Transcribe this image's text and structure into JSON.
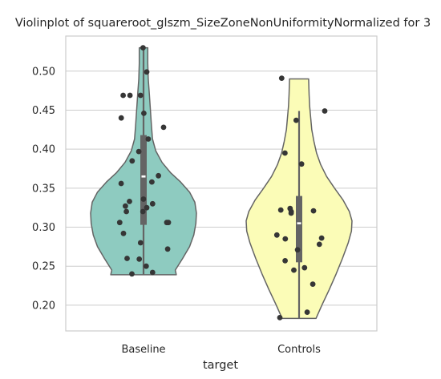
{
  "chart_data": {
    "type": "violin",
    "title": "Violinplot of squareroot_glszm_SizeZoneNonUniformityNormalized for 3",
    "xlabel": "target",
    "ylabel": "",
    "categories": [
      "Baseline",
      "Controls"
    ],
    "ylim": [
      0.167,
      0.545
    ],
    "yticks": [
      0.2,
      0.25,
      0.3,
      0.35,
      0.4,
      0.45,
      0.5
    ],
    "ytick_labels": [
      "0.20",
      "0.25",
      "0.30",
      "0.35",
      "0.40",
      "0.45",
      "0.50"
    ],
    "grid": "horizontal",
    "colors": {
      "Baseline": "#8ecbc0",
      "Controls": "#fbfcb7",
      "outline": "#646464",
      "points": "#363636",
      "box": "#646464"
    },
    "series": [
      {
        "name": "Baseline",
        "range": [
          0.239,
          0.53
        ],
        "box": {
          "q1": 0.303,
          "median": 0.365,
          "q3": 0.418,
          "whisker_low": 0.239,
          "whisker_high": 0.53
        },
        "density": [
          [
            0.239,
            0.62
          ],
          [
            0.245,
            0.6
          ],
          [
            0.26,
            0.74
          ],
          [
            0.275,
            0.87
          ],
          [
            0.29,
            0.95
          ],
          [
            0.305,
            0.99
          ],
          [
            0.318,
            1.0
          ],
          [
            0.332,
            0.97
          ],
          [
            0.345,
            0.87
          ],
          [
            0.358,
            0.7
          ],
          [
            0.37,
            0.51
          ],
          [
            0.383,
            0.35
          ],
          [
            0.398,
            0.23
          ],
          [
            0.413,
            0.17
          ],
          [
            0.43,
            0.15
          ],
          [
            0.45,
            0.13
          ],
          [
            0.47,
            0.11
          ],
          [
            0.49,
            0.09
          ],
          [
            0.51,
            0.08
          ],
          [
            0.53,
            0.08
          ]
        ],
        "points": [
          0.53,
          0.499,
          0.469,
          0.469,
          0.469,
          0.446,
          0.44,
          0.428,
          0.413,
          0.397,
          0.385,
          0.366,
          0.358,
          0.356,
          0.336,
          0.333,
          0.33,
          0.327,
          0.325,
          0.32,
          0.32,
          0.306,
          0.306,
          0.306,
          0.292,
          0.28,
          0.272,
          0.26,
          0.259,
          0.25,
          0.242,
          0.24
        ]
      },
      {
        "name": "Controls",
        "range": [
          0.183,
          0.49
        ],
        "box": {
          "q1": 0.255,
          "median": 0.305,
          "q3": 0.34,
          "whisker_low": 0.183,
          "whisker_high": 0.449
        },
        "density": [
          [
            0.183,
            0.32
          ],
          [
            0.2,
            0.43
          ],
          [
            0.22,
            0.57
          ],
          [
            0.24,
            0.7
          ],
          [
            0.26,
            0.82
          ],
          [
            0.28,
            0.93
          ],
          [
            0.295,
            0.99
          ],
          [
            0.308,
            1.0
          ],
          [
            0.32,
            0.95
          ],
          [
            0.335,
            0.83
          ],
          [
            0.35,
            0.67
          ],
          [
            0.365,
            0.52
          ],
          [
            0.38,
            0.41
          ],
          [
            0.395,
            0.33
          ],
          [
            0.41,
            0.28
          ],
          [
            0.425,
            0.24
          ],
          [
            0.44,
            0.22
          ],
          [
            0.455,
            0.2
          ],
          [
            0.47,
            0.19
          ],
          [
            0.49,
            0.18
          ]
        ],
        "points": [
          0.491,
          0.449,
          0.437,
          0.395,
          0.381,
          0.324,
          0.322,
          0.321,
          0.32,
          0.318,
          0.29,
          0.286,
          0.285,
          0.278,
          0.271,
          0.257,
          0.248,
          0.245,
          0.227,
          0.191,
          0.184
        ]
      }
    ]
  }
}
